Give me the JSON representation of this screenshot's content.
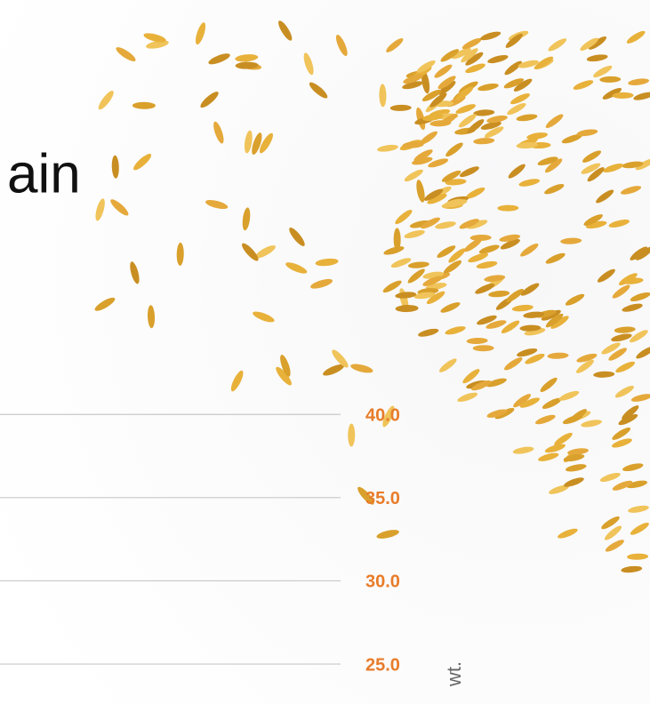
{
  "chart_data": {
    "type": "bar",
    "title": "ain",
    "ylabel": "wt.",
    "ylim": [
      22.6,
      64.9
    ],
    "yticks": [
      {
        "value": 25,
        "label": "25.0"
      },
      {
        "value": 30,
        "label": "30.0"
      },
      {
        "value": 35,
        "label": "35.0"
      },
      {
        "value": 40,
        "label": "40.0"
      }
    ],
    "grid": true,
    "tick_color": "#e87c2a"
  }
}
